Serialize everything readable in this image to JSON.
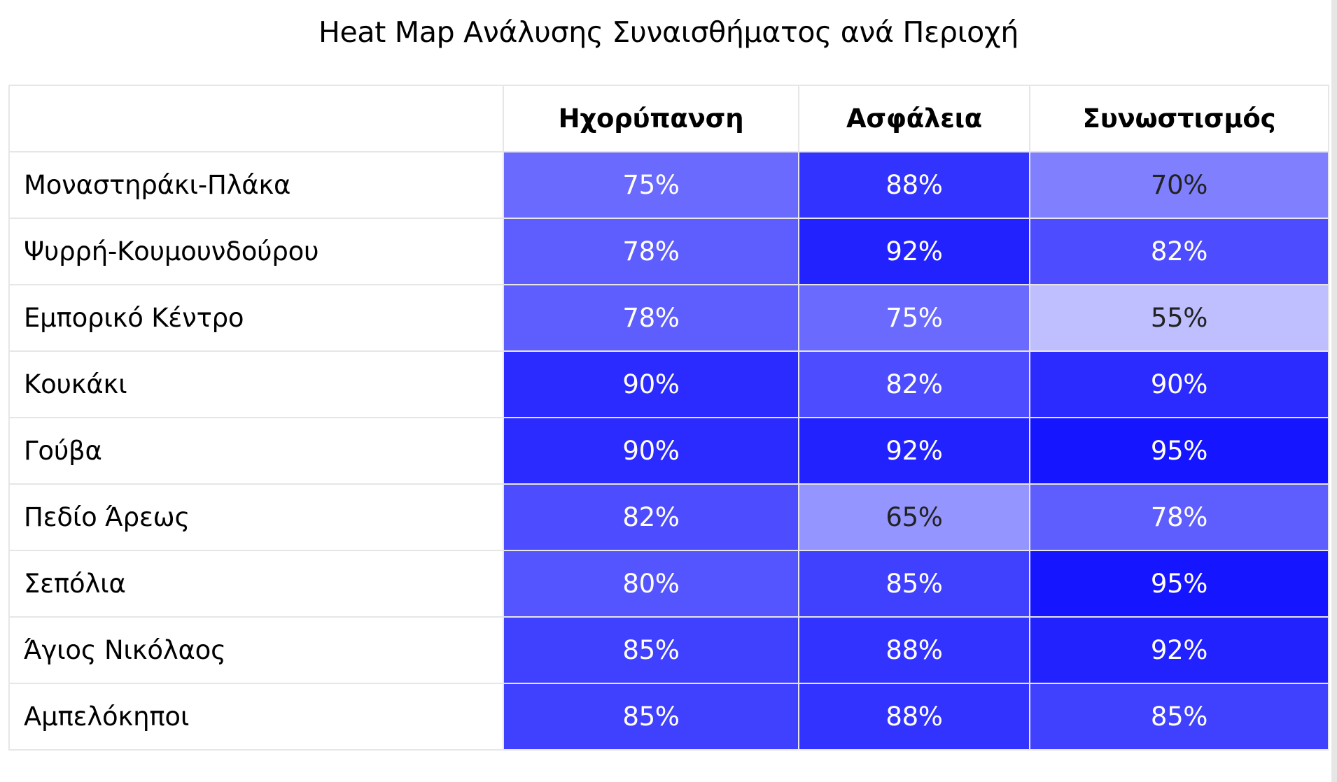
{
  "chart_data": {
    "type": "heatmap",
    "title": "Heat Map Ανάλυσης Συναισθήματος ανά Περιοχή",
    "columns": [
      "Ηχορύπανση",
      "Ασφάλεια",
      "Συνωστισμός"
    ],
    "rows": [
      "Μοναστηράκι-Πλάκα",
      "Ψυρρή-Κουμουνδούρου",
      "Εμπορικό Κέντρο",
      "Κουκάκι",
      "Γούβα",
      "Πεδίο Άρεως",
      "Σεπόλια",
      "Άγιος Νικόλαος",
      "Αμπελόκηποι"
    ],
    "values": [
      [
        75,
        88,
        70
      ],
      [
        78,
        92,
        82
      ],
      [
        78,
        75,
        55
      ],
      [
        90,
        82,
        90
      ],
      [
        90,
        92,
        95
      ],
      [
        82,
        65,
        78
      ],
      [
        80,
        85,
        95
      ],
      [
        85,
        88,
        92
      ],
      [
        85,
        88,
        85
      ]
    ],
    "value_suffix": "%",
    "color_scale": {
      "low_value": 40,
      "high_value": 100,
      "low_color": "#ffffff",
      "high_color": "#0000ff",
      "dark_text_color": "#222222",
      "light_text_color": "#ffffff",
      "dark_text_below": 72
    }
  }
}
